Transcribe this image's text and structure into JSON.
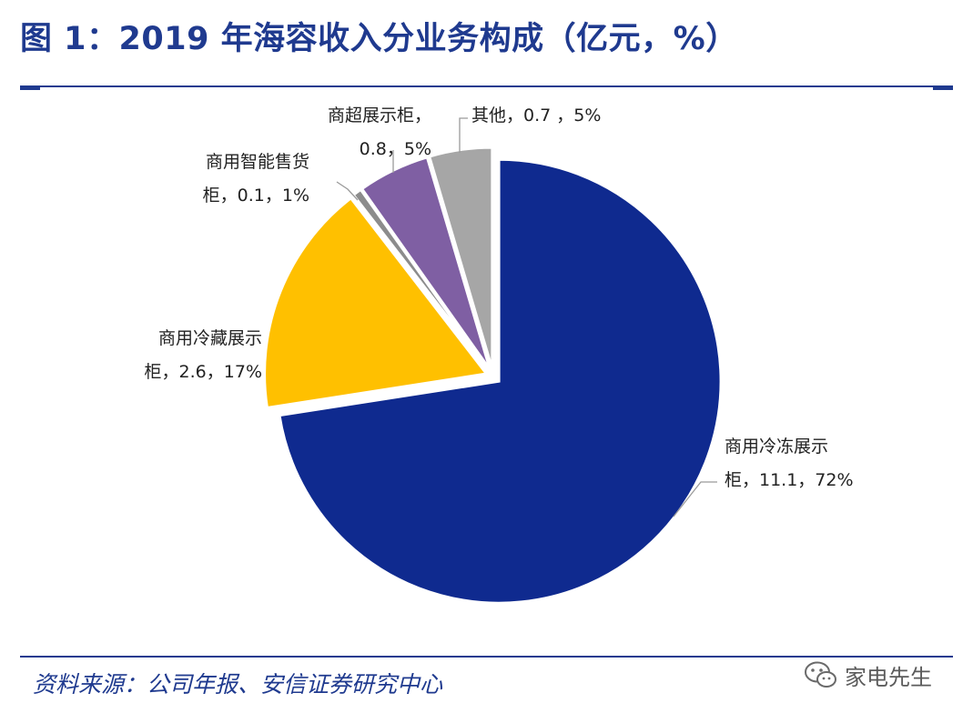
{
  "header": {
    "title": "图 1：2019 年海容收入分业务构成（亿元，%）"
  },
  "footer": {
    "source": "资料来源：公司年报、安信证券研究中心",
    "watermark": "家电先生"
  },
  "chart_data": {
    "type": "pie",
    "title": "2019 年海容收入分业务构成（亿元，%）",
    "unit": "亿元",
    "slices": [
      {
        "name": "商用冷冻展示柜",
        "value": 11.1,
        "percent": 72,
        "color": "#0F2A8F",
        "label_lines": [
          "商用冷冻展示",
          "柜，11.1，72%"
        ]
      },
      {
        "name": "商用冷藏展示柜",
        "value": 2.6,
        "percent": 17,
        "color": "#FFC000",
        "label_lines": [
          "商用冷藏展示",
          "柜，2.6，17%"
        ]
      },
      {
        "name": "商用智能售货柜",
        "value": 0.1,
        "percent": 1,
        "color": "#8C8C8C",
        "label_lines": [
          "商用智能售货",
          "柜，0.1，1%"
        ]
      },
      {
        "name": "商超展示柜",
        "value": 0.8,
        "percent": 5,
        "color": "#7F5FA3",
        "label_lines": [
          "商超展示柜，",
          "0.8，5%"
        ]
      },
      {
        "name": "其他",
        "value": 0.7,
        "percent": 5,
        "color": "#A6A6A6",
        "label_lines": [
          "其他，0.7 ，5%"
        ]
      }
    ]
  }
}
